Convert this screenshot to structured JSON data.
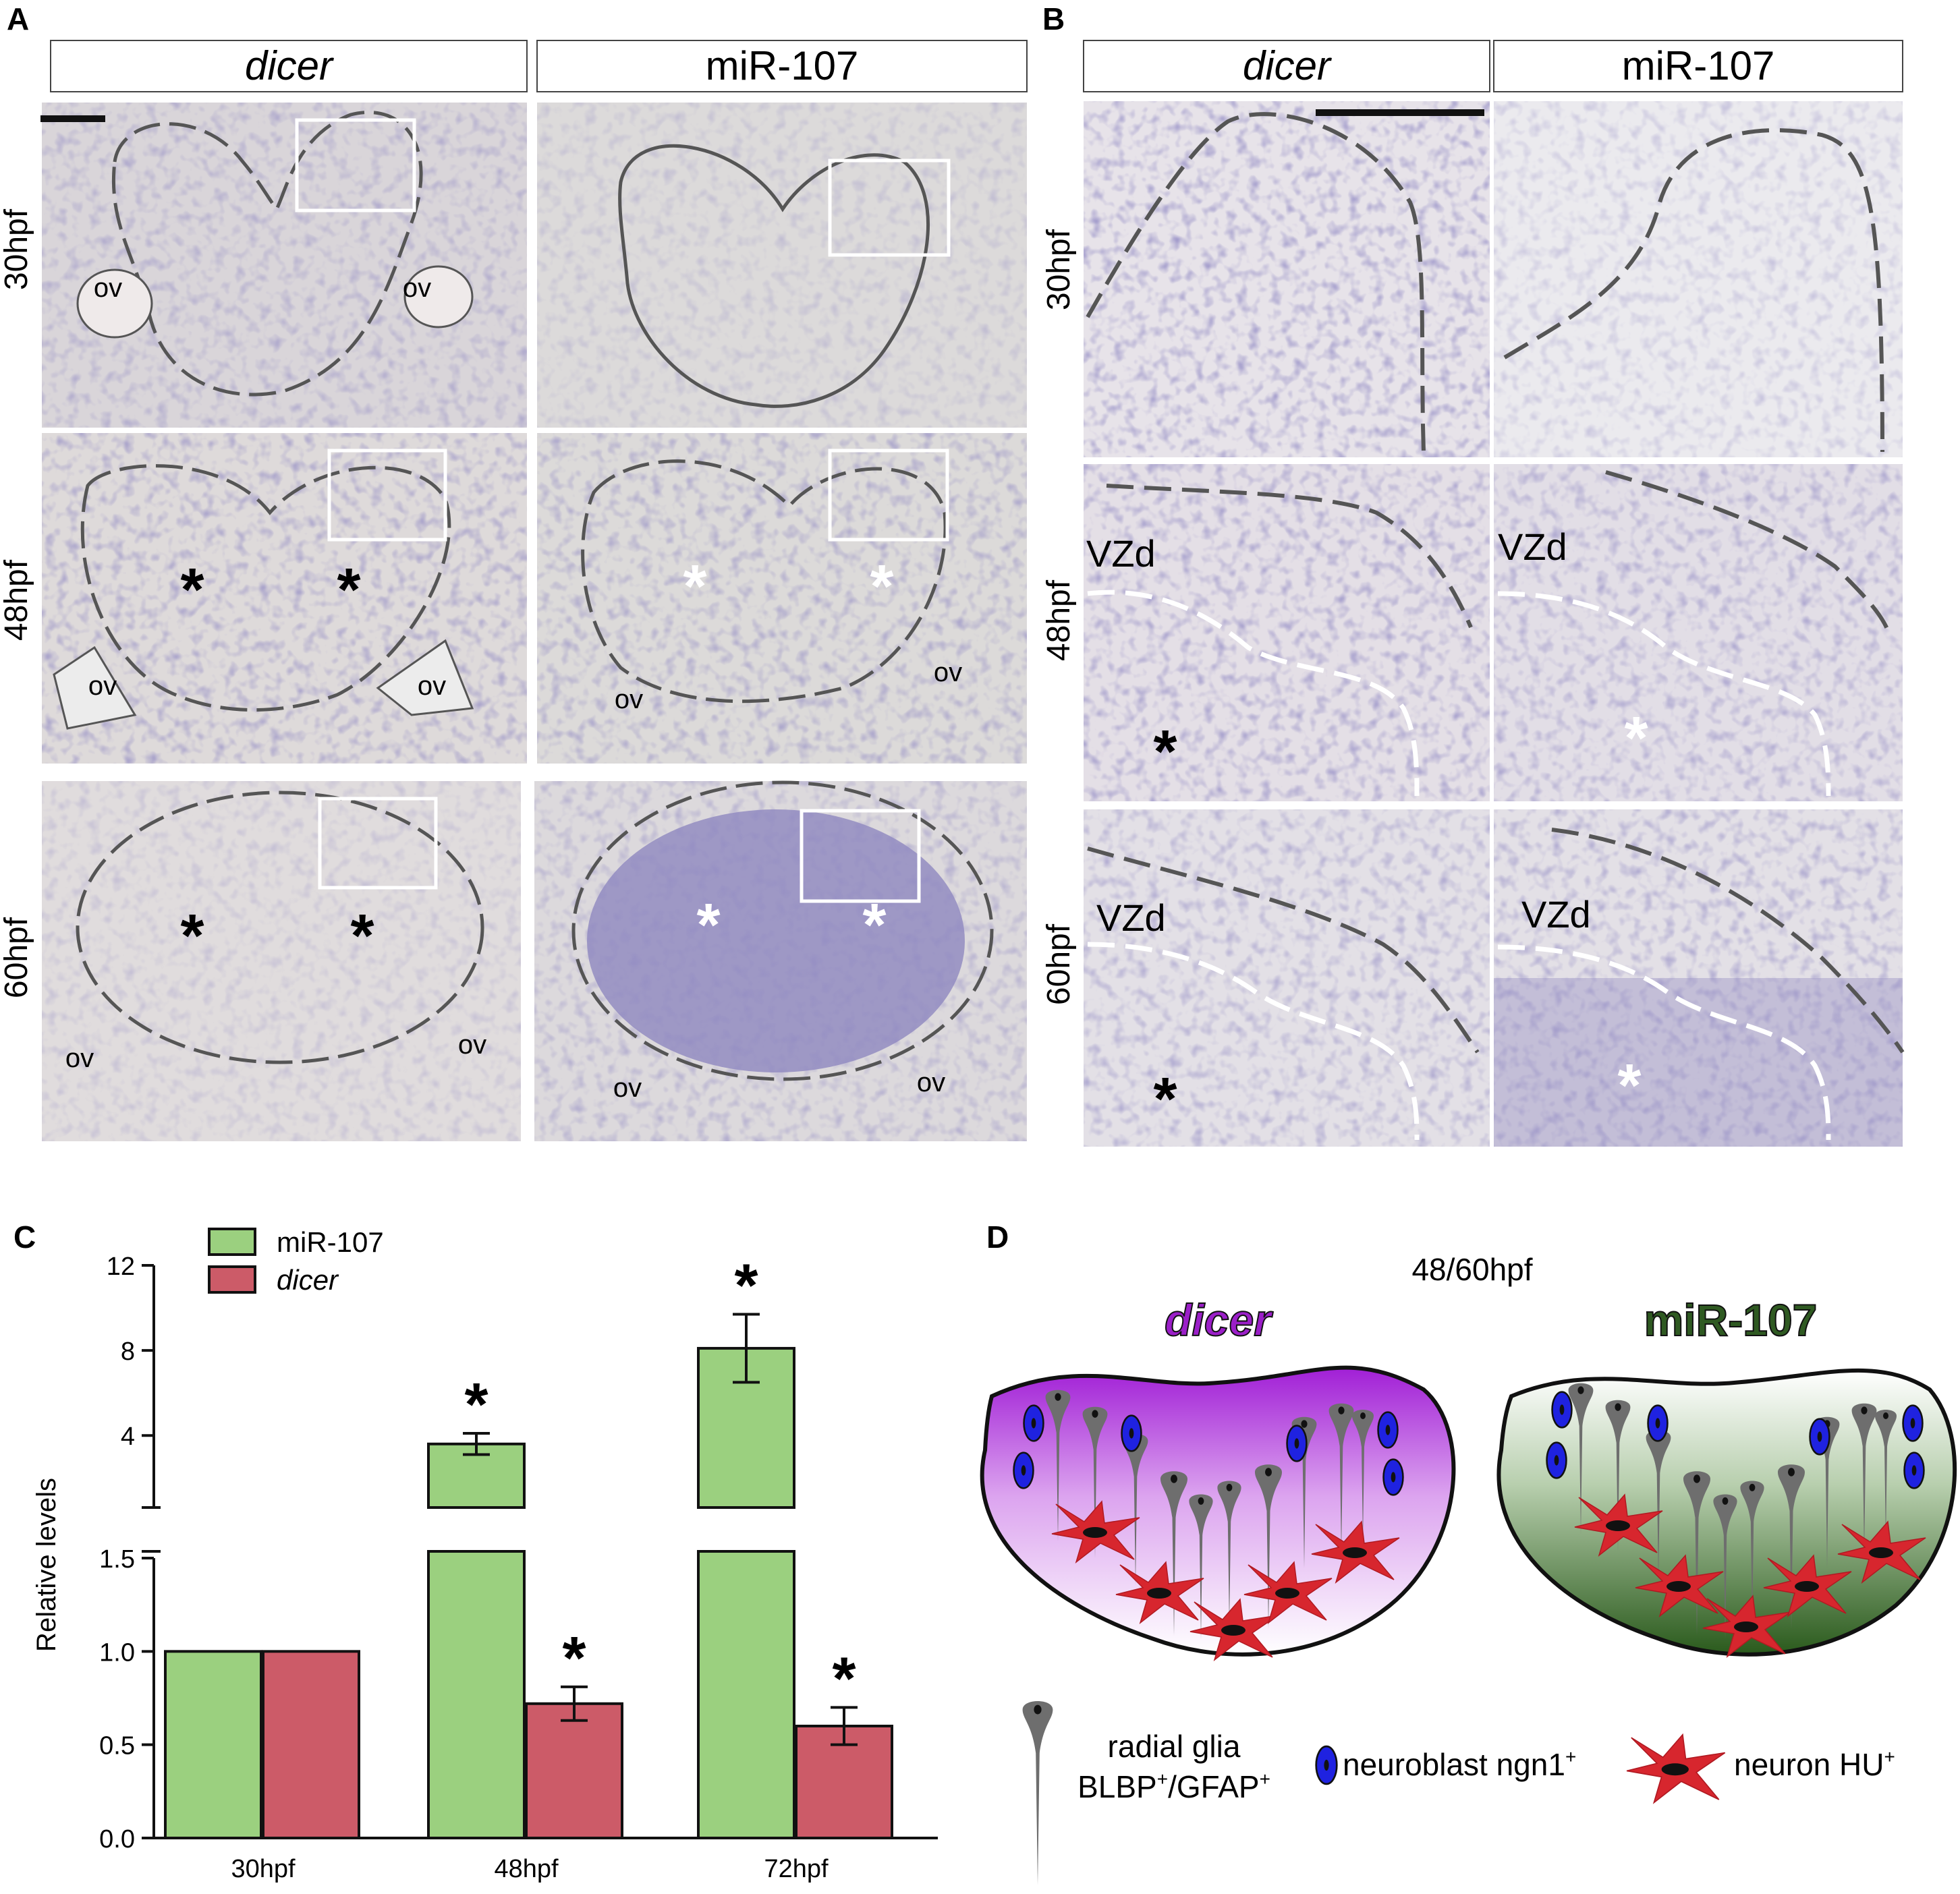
{
  "panels": {
    "a": "A",
    "b": "B",
    "c": "C",
    "d": "D"
  },
  "panel_a": {
    "headers": [
      "dicer",
      "miR-107"
    ],
    "rows": [
      "30hpf",
      "48hpf",
      "60hpf"
    ],
    "ov": "ov",
    "star": "*"
  },
  "panel_b": {
    "headers": [
      "dicer",
      "miR-107"
    ],
    "rows": [
      "30hpf",
      "48hpf",
      "60hpf"
    ],
    "zone": "VZd",
    "star": "*"
  },
  "chart_data": {
    "type": "bar",
    "categories": [
      "30hpf",
      "48hpf",
      "72hpf"
    ],
    "series": [
      {
        "name": "miR-107",
        "values": [
          1.0,
          3.6,
          8.1
        ],
        "errors": [
          0,
          0.5,
          1.6
        ],
        "color": "#9bd07f"
      },
      {
        "name": "dicer",
        "values": [
          1.0,
          0.72,
          0.6
        ],
        "errors": [
          0,
          0.09,
          0.1
        ],
        "color": "#cc5b68"
      }
    ],
    "significance": [
      [
        false,
        true,
        true
      ],
      [
        false,
        true,
        true
      ]
    ],
    "significance_marker": "*",
    "ylabel": "Relative levels",
    "ylim_lower": [
      0.0,
      1.5
    ],
    "ylim_upper": [
      1.5,
      12
    ],
    "y_ticks_lower": [
      "0.0",
      "0.5",
      "1.0",
      "1.5"
    ],
    "y_ticks_upper": [
      "4",
      "8",
      "12"
    ],
    "y_break": true,
    "legend_position": "top-left"
  },
  "panel_d": {
    "timepoint": "48/60hpf",
    "title_left": "dicer",
    "title_right": "miR-107",
    "title_left_color": "#9b1fc8",
    "title_right_color": "#2f5a22",
    "legend": {
      "glia_line1": "radial glia",
      "glia_line2_a": "BLBP",
      "glia_line2_b": "/GFAP",
      "sup": "+",
      "neuroblast": "neuroblast ngn1",
      "neuron": "neuron HU"
    },
    "colors": {
      "glia": "#6e6e6e",
      "neuroblast": "#1f22e0",
      "neuron": "#d7262e"
    }
  }
}
